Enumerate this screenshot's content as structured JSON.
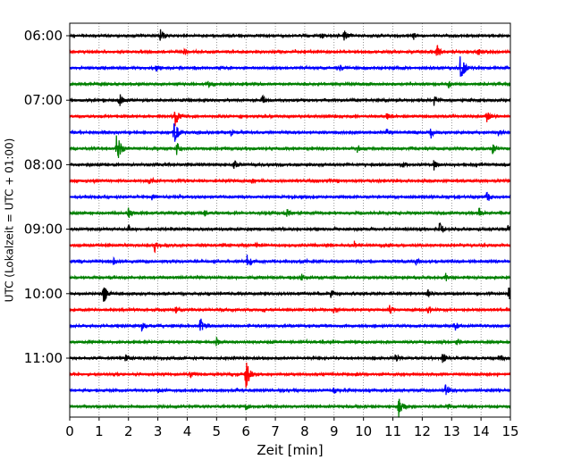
{
  "chart_data": {
    "type": "line",
    "title": "",
    "xlabel": "Zeit  [min]",
    "ylabel": "UTC (Lokalzeit = UTC + 01:00)",
    "xlim": [
      0,
      15
    ],
    "x_ticks": [
      0,
      1,
      2,
      3,
      4,
      5,
      6,
      7,
      8,
      9,
      10,
      11,
      12,
      13,
      14,
      15
    ],
    "x_tick_labels": [
      "0",
      "1",
      "2",
      "3",
      "4",
      "5",
      "6",
      "7",
      "8",
      "9",
      "10",
      "11",
      "12",
      "13",
      "14",
      "15"
    ],
    "y_tick_labels": [
      "06:00",
      "07:00",
      "08:00",
      "09:00",
      "10:00",
      "11:00"
    ],
    "y_tick_trace_index": [
      0,
      4,
      8,
      12,
      16,
      20
    ],
    "grid": "vertical dotted lines at each minute",
    "legend": "none",
    "trace_interval_min": 15,
    "colors": [
      "#000000",
      "#ff0000",
      "#0000ff",
      "#008000"
    ],
    "traces": [
      {
        "start": "06:00",
        "color": "#000000",
        "events": [
          {
            "t": 3.1,
            "amp": 0.45
          },
          {
            "t": 8.55,
            "amp": 0.3
          },
          {
            "t": 9.35,
            "amp": 0.45
          },
          {
            "t": 11.7,
            "amp": 0.25
          }
        ]
      },
      {
        "start": "06:15",
        "color": "#ff0000",
        "events": [
          {
            "t": 12.5,
            "amp": 0.5
          },
          {
            "t": 3.9,
            "amp": 0.2
          },
          {
            "t": 13.9,
            "amp": 0.25
          }
        ]
      },
      {
        "start": "06:30",
        "color": "#0000ff",
        "events": [
          {
            "t": 13.3,
            "amp": 1.0
          },
          {
            "t": 2.95,
            "amp": 0.25
          },
          {
            "t": 9.2,
            "amp": 0.2
          }
        ]
      },
      {
        "start": "06:45",
        "color": "#008000",
        "events": [
          {
            "t": 4.7,
            "amp": 0.3
          },
          {
            "t": 12.9,
            "amp": 0.25
          }
        ]
      },
      {
        "start": "07:00",
        "color": "#000000",
        "events": [
          {
            "t": 1.7,
            "amp": 0.6
          },
          {
            "t": 6.55,
            "amp": 0.35
          },
          {
            "t": 12.4,
            "amp": 0.3
          }
        ]
      },
      {
        "start": "07:15",
        "color": "#ff0000",
        "events": [
          {
            "t": 3.6,
            "amp": 0.65
          },
          {
            "t": 14.2,
            "amp": 0.35
          },
          {
            "t": 10.8,
            "amp": 0.2
          }
        ]
      },
      {
        "start": "07:30",
        "color": "#0000ff",
        "events": [
          {
            "t": 3.55,
            "amp": 0.85
          },
          {
            "t": 12.3,
            "amp": 0.35
          },
          {
            "t": 10.8,
            "amp": 0.25
          },
          {
            "t": 14.6,
            "amp": 0.25
          },
          {
            "t": 5.5,
            "amp": 0.2
          }
        ]
      },
      {
        "start": "07:45",
        "color": "#008000",
        "events": [
          {
            "t": 1.6,
            "amp": 1.0
          },
          {
            "t": 3.65,
            "amp": 0.45
          },
          {
            "t": 9.8,
            "amp": 0.25
          },
          {
            "t": 14.4,
            "amp": 0.3
          }
        ]
      },
      {
        "start": "08:00",
        "color": "#000000",
        "events": [
          {
            "t": 5.6,
            "amp": 0.3
          },
          {
            "t": 12.4,
            "amp": 0.35
          },
          {
            "t": 11.35,
            "amp": 0.2
          }
        ]
      },
      {
        "start": "08:15",
        "color": "#ff0000",
        "events": [
          {
            "t": 2.7,
            "amp": 0.2
          },
          {
            "t": 6.2,
            "amp": 0.2
          }
        ]
      },
      {
        "start": "08:30",
        "color": "#0000ff",
        "events": [
          {
            "t": 14.2,
            "amp": 0.3
          },
          {
            "t": 2.8,
            "amp": 0.2
          }
        ]
      },
      {
        "start": "08:45",
        "color": "#008000",
        "events": [
          {
            "t": 13.9,
            "amp": 0.5
          },
          {
            "t": 2.0,
            "amp": 0.35
          },
          {
            "t": 4.6,
            "amp": 0.25
          },
          {
            "t": 7.4,
            "amp": 0.3
          }
        ]
      },
      {
        "start": "09:00",
        "color": "#000000",
        "events": [
          {
            "t": 12.6,
            "amp": 0.45
          },
          {
            "t": 2.0,
            "amp": 0.3
          },
          {
            "t": 14.9,
            "amp": 0.25
          }
        ]
      },
      {
        "start": "09:15",
        "color": "#ff0000",
        "events": [
          {
            "t": 2.9,
            "amp": 0.4
          },
          {
            "t": 6.35,
            "amp": 0.2
          },
          {
            "t": 9.7,
            "amp": 0.2
          }
        ]
      },
      {
        "start": "09:30",
        "color": "#0000ff",
        "events": [
          {
            "t": 6.05,
            "amp": 0.55
          },
          {
            "t": 1.5,
            "amp": 0.25
          },
          {
            "t": 11.8,
            "amp": 0.25
          }
        ]
      },
      {
        "start": "09:45",
        "color": "#008000",
        "events": [
          {
            "t": 7.9,
            "amp": 0.25
          },
          {
            "t": 12.8,
            "amp": 0.25
          }
        ]
      },
      {
        "start": "10:00",
        "color": "#000000",
        "events": [
          {
            "t": 1.15,
            "amp": 0.75
          },
          {
            "t": 14.95,
            "amp": 0.45
          },
          {
            "t": 12.2,
            "amp": 0.3
          },
          {
            "t": 8.9,
            "amp": 0.25
          }
        ]
      },
      {
        "start": "10:15",
        "color": "#ff0000",
        "events": [
          {
            "t": 9.0,
            "amp": 0.3
          },
          {
            "t": 10.9,
            "amp": 0.3
          },
          {
            "t": 12.2,
            "amp": 0.25
          },
          {
            "t": 3.6,
            "amp": 0.2
          }
        ]
      },
      {
        "start": "10:30",
        "color": "#0000ff",
        "events": [
          {
            "t": 4.45,
            "amp": 0.55
          },
          {
            "t": 13.1,
            "amp": 0.4
          },
          {
            "t": 2.45,
            "amp": 0.3
          }
        ]
      },
      {
        "start": "10:45",
        "color": "#008000",
        "events": [
          {
            "t": 5.0,
            "amp": 0.25
          },
          {
            "t": 13.2,
            "amp": 0.2
          }
        ]
      },
      {
        "start": "11:00",
        "color": "#000000",
        "events": [
          {
            "t": 12.7,
            "amp": 0.45
          },
          {
            "t": 1.9,
            "amp": 0.25
          },
          {
            "t": 11.1,
            "amp": 0.3
          },
          {
            "t": 14.7,
            "amp": 0.25
          }
        ]
      },
      {
        "start": "11:15",
        "color": "#ff0000",
        "events": [
          {
            "t": 6.0,
            "amp": 1.0
          },
          {
            "t": 4.1,
            "amp": 0.2
          }
        ]
      },
      {
        "start": "11:30",
        "color": "#0000ff",
        "events": [
          {
            "t": 12.8,
            "amp": 0.45
          },
          {
            "t": 9.0,
            "amp": 0.25
          },
          {
            "t": 3.0,
            "amp": 0.2
          }
        ]
      },
      {
        "start": "11:45",
        "color": "#008000",
        "events": [
          {
            "t": 11.2,
            "amp": 0.7
          },
          {
            "t": 6.0,
            "amp": 0.25
          },
          {
            "t": 12.9,
            "amp": 0.2
          }
        ]
      }
    ]
  }
}
